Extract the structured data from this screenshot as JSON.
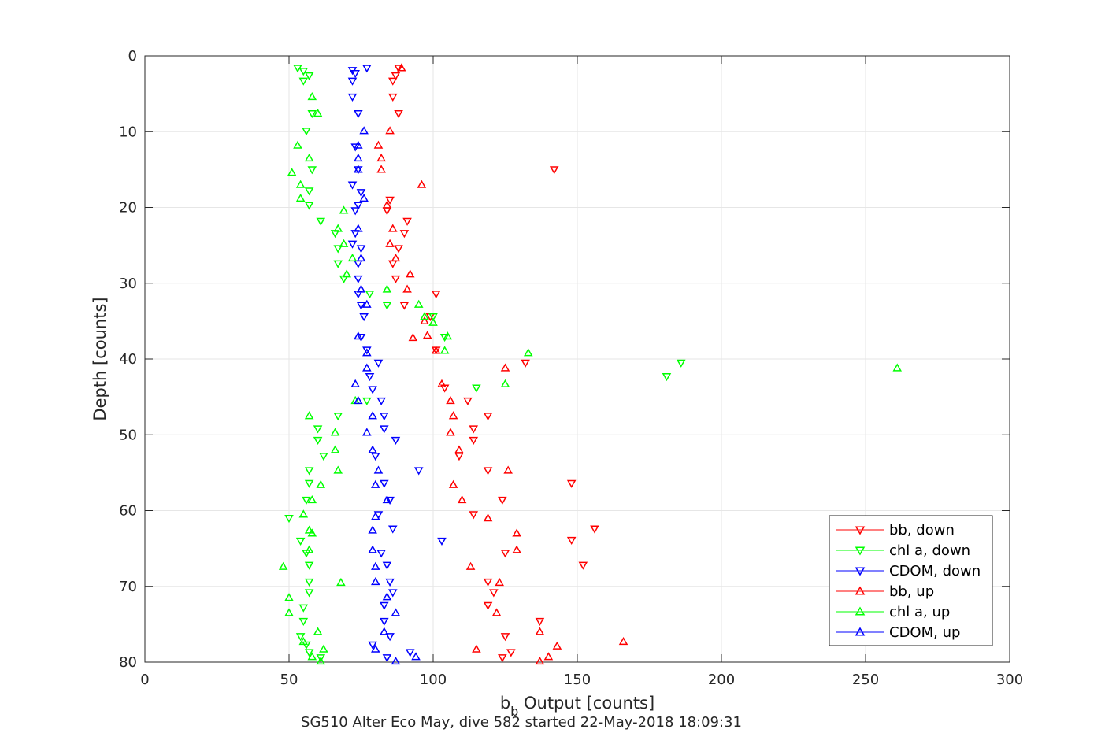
{
  "chart_data": {
    "type": "scatter",
    "title": "",
    "xlabel_main": "b",
    "xlabel_sub": "b",
    "xlabel_rest": " Output [counts]",
    "ylabel": "Depth [counts]",
    "caption": "SG510 Alter Eco May, dive 582 started 22-May-2018 18:09:31",
    "xlim": [
      0,
      300
    ],
    "ylim": [
      0,
      80
    ],
    "y_reversed": true,
    "grid": true,
    "legend_position": "lower-right",
    "xticks": [
      "0",
      "50",
      "100",
      "150",
      "200",
      "250",
      "300"
    ],
    "yticks": [
      "0",
      "10",
      "20",
      "30",
      "40",
      "50",
      "60",
      "70",
      "80"
    ],
    "series": [
      {
        "name": "bb, down",
        "marker": "triangle-down",
        "color": "#ff0000",
        "points": [
          [
            88,
            1.6
          ],
          [
            87,
            2.6
          ],
          [
            86,
            3.3
          ],
          [
            86,
            5.4
          ],
          [
            88,
            7.6
          ],
          [
            142,
            15.0
          ],
          [
            85,
            19.0
          ],
          [
            84,
            20.4
          ],
          [
            91,
            21.8
          ],
          [
            90,
            23.4
          ],
          [
            88,
            25.4
          ],
          [
            86,
            27.4
          ],
          [
            87,
            29.4
          ],
          [
            101,
            31.4
          ],
          [
            90,
            32.9
          ],
          [
            99,
            34.4
          ],
          [
            101,
            38.8
          ],
          [
            132,
            40.5
          ],
          [
            104,
            43.8
          ],
          [
            112,
            45.5
          ],
          [
            119,
            47.5
          ],
          [
            114,
            49.2
          ],
          [
            114,
            50.7
          ],
          [
            109,
            52.8
          ],
          [
            119,
            54.7
          ],
          [
            124,
            58.6
          ],
          [
            114,
            60.5
          ],
          [
            156,
            62.4
          ],
          [
            148,
            56.4
          ],
          [
            148,
            63.9
          ],
          [
            125,
            65.6
          ],
          [
            152,
            67.2
          ],
          [
            119,
            69.4
          ],
          [
            121,
            70.8
          ],
          [
            119,
            72.5
          ],
          [
            137,
            74.6
          ],
          [
            125,
            76.6
          ],
          [
            127,
            78.7
          ],
          [
            124,
            79.4
          ]
        ]
      },
      {
        "name": "chl a, down",
        "marker": "triangle-down",
        "color": "#00ff00",
        "points": [
          [
            53,
            1.6
          ],
          [
            55,
            2.0
          ],
          [
            57,
            2.6
          ],
          [
            55,
            3.3
          ],
          [
            58,
            7.6
          ],
          [
            56,
            9.9
          ],
          [
            58,
            15.0
          ],
          [
            57,
            17.8
          ],
          [
            57,
            19.7
          ],
          [
            61,
            21.8
          ],
          [
            66,
            23.4
          ],
          [
            67,
            25.4
          ],
          [
            67,
            27.4
          ],
          [
            69,
            29.4
          ],
          [
            78,
            31.4
          ],
          [
            84,
            32.9
          ],
          [
            100,
            34.4
          ],
          [
            104,
            37.1
          ],
          [
            186,
            40.5
          ],
          [
            181,
            42.3
          ],
          [
            115,
            43.8
          ],
          [
            77,
            45.5
          ],
          [
            67,
            47.5
          ],
          [
            60,
            49.2
          ],
          [
            60,
            50.7
          ],
          [
            62,
            52.8
          ],
          [
            57,
            54.7
          ],
          [
            57,
            56.4
          ],
          [
            56,
            58.6
          ],
          [
            50,
            61.0
          ],
          [
            54,
            64.0
          ],
          [
            56,
            65.6
          ],
          [
            57,
            67.2
          ],
          [
            57,
            69.4
          ],
          [
            57,
            70.8
          ],
          [
            55,
            72.8
          ],
          [
            55,
            74.6
          ],
          [
            54,
            76.6
          ],
          [
            56,
            77.7
          ],
          [
            57,
            78.7
          ],
          [
            61,
            79.4
          ]
        ]
      },
      {
        "name": "CDOM, down",
        "marker": "triangle-down",
        "color": "#0000ff",
        "points": [
          [
            77,
            1.6
          ],
          [
            72,
            1.9
          ],
          [
            73,
            2.3
          ],
          [
            72,
            3.3
          ],
          [
            72,
            5.4
          ],
          [
            74,
            7.6
          ],
          [
            73,
            12.0
          ],
          [
            74,
            15.0
          ],
          [
            72,
            17.0
          ],
          [
            75,
            18.0
          ],
          [
            74,
            19.7
          ],
          [
            73,
            20.4
          ],
          [
            73,
            23.4
          ],
          [
            72,
            24.8
          ],
          [
            75,
            25.4
          ],
          [
            74,
            27.4
          ],
          [
            74,
            29.4
          ],
          [
            74,
            31.4
          ],
          [
            75,
            32.9
          ],
          [
            76,
            34.4
          ],
          [
            75,
            37.1
          ],
          [
            77,
            38.8
          ],
          [
            81,
            40.5
          ],
          [
            78,
            42.3
          ],
          [
            79,
            44.0
          ],
          [
            82,
            45.5
          ],
          [
            83,
            47.5
          ],
          [
            83,
            49.2
          ],
          [
            87,
            50.7
          ],
          [
            80,
            52.8
          ],
          [
            95,
            54.7
          ],
          [
            83,
            56.4
          ],
          [
            85,
            58.6
          ],
          [
            81,
            60.5
          ],
          [
            86,
            62.4
          ],
          [
            103,
            64.0
          ],
          [
            82,
            65.6
          ],
          [
            84,
            67.2
          ],
          [
            85,
            69.4
          ],
          [
            86,
            70.8
          ],
          [
            83,
            72.5
          ],
          [
            83,
            74.6
          ],
          [
            85,
            76.6
          ],
          [
            79,
            77.7
          ],
          [
            92,
            78.7
          ],
          [
            84,
            79.4
          ]
        ]
      },
      {
        "name": "bb, up",
        "marker": "triangle-up",
        "color": "#ff0000",
        "points": [
          [
            89,
            1.6
          ],
          [
            85,
            9.9
          ],
          [
            81,
            11.8
          ],
          [
            82,
            13.5
          ],
          [
            82,
            15.0
          ],
          [
            96,
            17.0
          ],
          [
            84,
            19.7
          ],
          [
            86,
            22.8
          ],
          [
            85,
            24.8
          ],
          [
            87,
            26.7
          ],
          [
            92,
            28.8
          ],
          [
            91,
            30.8
          ],
          [
            97,
            35.0
          ],
          [
            98,
            36.9
          ],
          [
            93,
            37.2
          ],
          [
            101,
            38.9
          ],
          [
            125,
            41.2
          ],
          [
            103,
            43.3
          ],
          [
            106,
            45.5
          ],
          [
            107,
            47.5
          ],
          [
            106,
            49.7
          ],
          [
            109,
            52.0
          ],
          [
            126,
            54.7
          ],
          [
            107,
            56.6
          ],
          [
            110,
            58.6
          ],
          [
            119,
            61.0
          ],
          [
            129,
            63.0
          ],
          [
            129,
            65.2
          ],
          [
            113,
            67.4
          ],
          [
            123,
            69.5
          ],
          [
            122,
            73.5
          ],
          [
            137,
            76.0
          ],
          [
            166,
            77.3
          ],
          [
            143,
            77.9
          ],
          [
            115,
            78.3
          ],
          [
            140,
            79.3
          ],
          [
            137,
            79.9
          ]
        ]
      },
      {
        "name": "chl a, up",
        "marker": "triangle-up",
        "color": "#00ff00",
        "points": [
          [
            58,
            5.4
          ],
          [
            60,
            7.6
          ],
          [
            53,
            11.8
          ],
          [
            57,
            13.5
          ],
          [
            51,
            15.4
          ],
          [
            54,
            17.0
          ],
          [
            54,
            18.8
          ],
          [
            69,
            20.4
          ],
          [
            67,
            22.8
          ],
          [
            69,
            24.8
          ],
          [
            72,
            26.7
          ],
          [
            70,
            28.8
          ],
          [
            84,
            30.8
          ],
          [
            95,
            32.8
          ],
          [
            97,
            34.4
          ],
          [
            100,
            35.2
          ],
          [
            105,
            37.0
          ],
          [
            104,
            38.9
          ],
          [
            133,
            39.2
          ],
          [
            261,
            41.2
          ],
          [
            125,
            43.3
          ],
          [
            73,
            45.5
          ],
          [
            57,
            47.5
          ],
          [
            66,
            49.7
          ],
          [
            66,
            52.0
          ],
          [
            67,
            54.7
          ],
          [
            61,
            56.6
          ],
          [
            58,
            58.6
          ],
          [
            55,
            60.5
          ],
          [
            57,
            62.6
          ],
          [
            58,
            63.0
          ],
          [
            57,
            65.2
          ],
          [
            48,
            67.4
          ],
          [
            68,
            69.5
          ],
          [
            50,
            71.5
          ],
          [
            50,
            73.5
          ],
          [
            60,
            76.0
          ],
          [
            55,
            77.3
          ],
          [
            62,
            78.3
          ],
          [
            58,
            79.3
          ],
          [
            61,
            79.9
          ]
        ]
      },
      {
        "name": "CDOM, up",
        "marker": "triangle-up",
        "color": "#0000ff",
        "points": [
          [
            76,
            9.9
          ],
          [
            74,
            11.8
          ],
          [
            74,
            13.5
          ],
          [
            74,
            15.0
          ],
          [
            76,
            18.8
          ],
          [
            74,
            22.8
          ],
          [
            75,
            26.7
          ],
          [
            75,
            30.8
          ],
          [
            77,
            32.8
          ],
          [
            74,
            37.0
          ],
          [
            77,
            39.2
          ],
          [
            77,
            41.2
          ],
          [
            73,
            43.3
          ],
          [
            74,
            45.5
          ],
          [
            79,
            47.5
          ],
          [
            77,
            49.7
          ],
          [
            79,
            52.0
          ],
          [
            81,
            54.7
          ],
          [
            80,
            56.6
          ],
          [
            84,
            58.6
          ],
          [
            80,
            60.8
          ],
          [
            79,
            62.6
          ],
          [
            79,
            65.2
          ],
          [
            80,
            67.4
          ],
          [
            80,
            69.4
          ],
          [
            84,
            71.4
          ],
          [
            87,
            73.5
          ],
          [
            83,
            76.0
          ],
          [
            80,
            78.3
          ],
          [
            94,
            79.3
          ],
          [
            87,
            79.9
          ]
        ]
      }
    ]
  }
}
